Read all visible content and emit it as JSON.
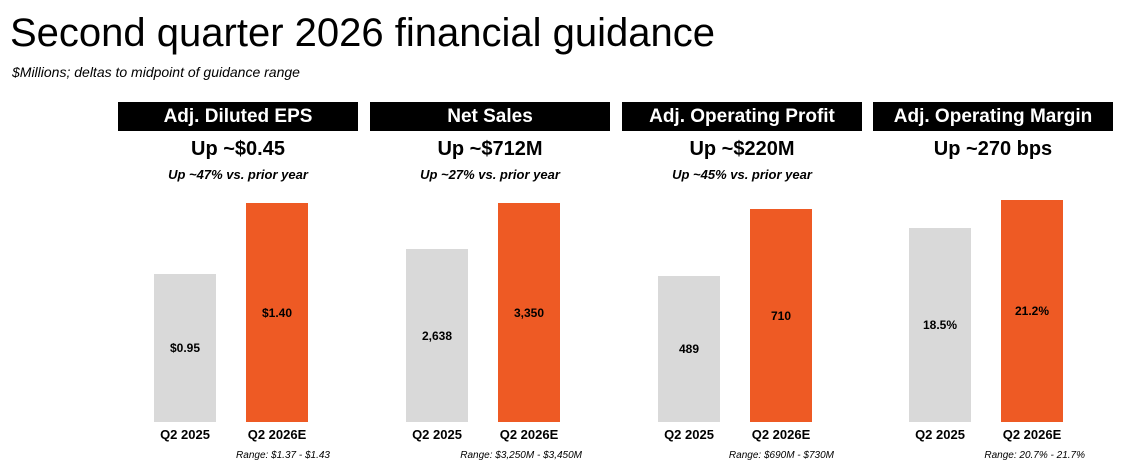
{
  "title": "Second quarter 2026 financial guidance",
  "subtitle": "$Millions; deltas to midpoint of guidance range",
  "colors": {
    "prior": "#d9d9d9",
    "current": "#ee5a24",
    "header_bg": "#000000",
    "header_text": "#ffffff"
  },
  "chart_data": [
    {
      "type": "bar",
      "title": "Adj. Diluted EPS",
      "headline": "Up ~$0.45",
      "growth": "Up ~47% vs. prior year",
      "categories": [
        "Q2 2025",
        "Q2 2026E"
      ],
      "values": [
        0.95,
        1.4
      ],
      "value_labels": [
        "$0.95",
        "$1.40"
      ],
      "range_note": "Range: $1.37 - $1.43",
      "ylim": [
        0,
        1.55
      ]
    },
    {
      "type": "bar",
      "title": "Net Sales",
      "headline": "Up ~$712M",
      "growth": "Up ~27% vs. prior year",
      "categories": [
        "Q2 2025",
        "Q2 2026E"
      ],
      "values": [
        2638,
        3350
      ],
      "value_labels": [
        "2,638",
        "3,350"
      ],
      "range_note": "Range: $3,250M - $3,450M",
      "ylim": [
        0,
        3700
      ]
    },
    {
      "type": "bar",
      "title": "Adj. Operating Profit",
      "headline": "Up ~$220M",
      "growth": "Up ~45% vs. prior year",
      "categories": [
        "Q2 2025",
        "Q2 2026E"
      ],
      "values": [
        489,
        710
      ],
      "value_labels": [
        "489",
        "710"
      ],
      "range_note": "Range: $690M - $730M",
      "ylim": [
        0,
        808
      ]
    },
    {
      "type": "bar",
      "title": "Adj. Operating Margin",
      "headline": "Up ~270 bps",
      "growth": "",
      "categories": [
        "Q2 2025",
        "Q2 2026E"
      ],
      "values": [
        18.5,
        21.2
      ],
      "value_labels": [
        "18.5%",
        "21.2%"
      ],
      "range_note": "Range: 20.7% - 21.7%",
      "ylim": [
        0,
        23.1
      ]
    }
  ]
}
